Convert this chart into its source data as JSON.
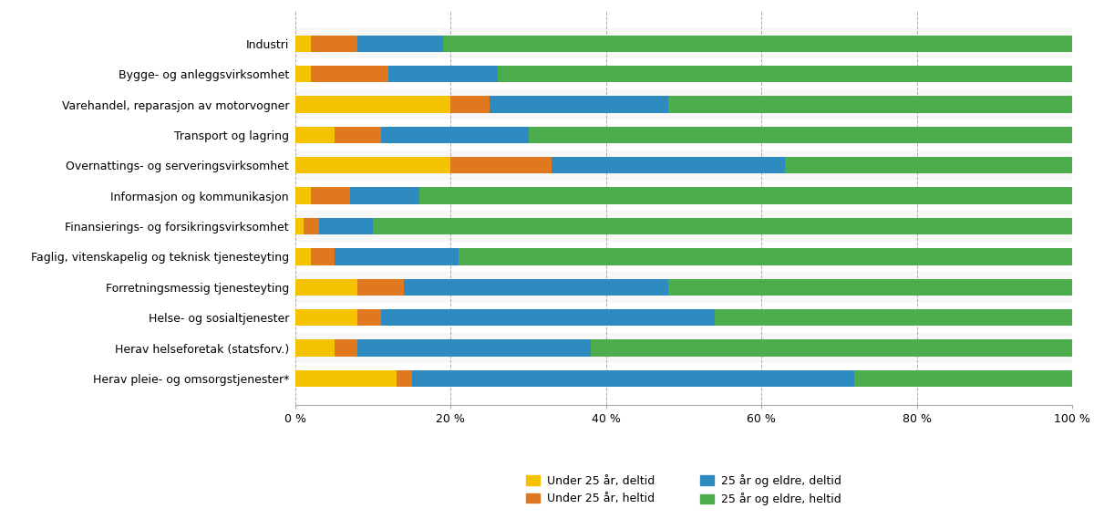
{
  "categories": [
    "Industri",
    "Bygge- og anleggsvirksomhet",
    "Varehandel, reparasjon av motorvogner",
    "Transport og lagring",
    "Overnattings- og serveringsvirksomhet",
    "Informasjon og kommunikasjon",
    "Finansierings- og forsikringsvirksomhet",
    "Faglig, vitenskapelig og teknisk tjenesteyting",
    "Forretningsmessig tjenesteyting",
    "Helse- og sosialtjenester",
    "Herav helseforetak (statsforv.)",
    "Herav pleie- og omsorgstjenester*"
  ],
  "under25_deltid": [
    2,
    2,
    20,
    5,
    20,
    2,
    1,
    2,
    8,
    8,
    5,
    13
  ],
  "under25_heltid": [
    6,
    10,
    5,
    6,
    13,
    5,
    2,
    3,
    6,
    3,
    3,
    2
  ],
  "over25_deltid": [
    11,
    14,
    23,
    19,
    30,
    9,
    7,
    16,
    34,
    43,
    30,
    57
  ],
  "over25_heltid": [
    81,
    74,
    52,
    70,
    37,
    84,
    90,
    79,
    52,
    46,
    62,
    28
  ],
  "colors": {
    "under25_deltid": "#F5C200",
    "under25_heltid": "#E07820",
    "over25_deltid": "#2E8BBF",
    "over25_heltid": "#4CAD4C"
  },
  "legend_labels_row1": [
    "Under 25 år, deltid",
    "Under 25 år, heltid"
  ],
  "legend_labels_row2": [
    "25 år og eldre, deltid",
    "25 år og eldre, heltid"
  ],
  "xlim": [
    0,
    100
  ],
  "xticks": [
    0,
    20,
    40,
    60,
    80,
    100
  ],
  "xtick_labels": [
    "0 %",
    "20 %",
    "40 %",
    "60 %",
    "80 %",
    "100 %"
  ],
  "grid_color": "#AAAAAA",
  "background_color": "#FFFFFF",
  "bar_height": 0.55
}
